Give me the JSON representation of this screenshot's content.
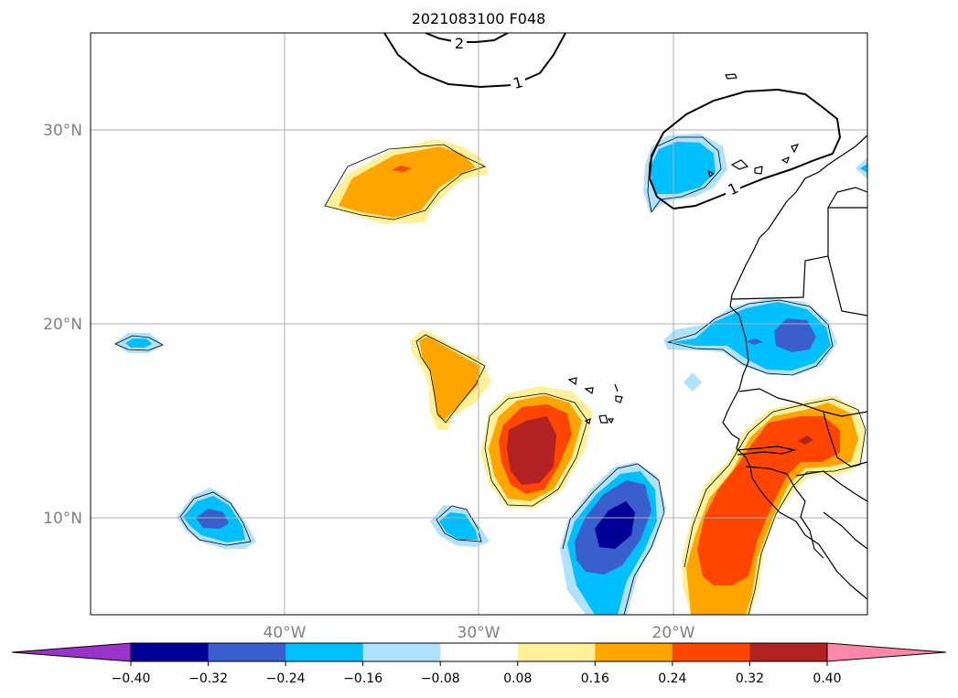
{
  "chart_data": {
    "type": "contour-map",
    "title": "2021083100 F048",
    "projection": "PlateCarree",
    "map_extent": {
      "lon": [
        -50,
        -10
      ],
      "lat": [
        5,
        35
      ]
    },
    "grid": true,
    "lon_ticks": [
      {
        "lon": -40,
        "label": "40°W"
      },
      {
        "lon": -30,
        "label": "30°W"
      },
      {
        "lon": -20,
        "label": "20°W"
      }
    ],
    "lat_ticks": [
      {
        "lat": 10,
        "label": "10°N"
      },
      {
        "lat": 20,
        "label": "20°N"
      },
      {
        "lat": 30,
        "label": "30°N"
      }
    ],
    "colorbar": {
      "orientation": "horizontal",
      "extend": "both",
      "levels": [
        -0.4,
        -0.32,
        -0.24,
        -0.16,
        -0.08,
        0.08,
        0.16,
        0.24,
        0.32,
        0.4
      ],
      "tick_labels": [
        "−0.40",
        "−0.32",
        "−0.24",
        "−0.16",
        "−0.08",
        "0.08",
        "0.16",
        "0.24",
        "0.32",
        "0.40"
      ],
      "colors": [
        "#9933cc",
        "#000099",
        "#3a5fcd",
        "#00bfff",
        "#b0e2ff",
        "#ffffff",
        "#fff09a",
        "#ffa500",
        "#ff4500",
        "#b22222",
        "#ff88aa"
      ]
    },
    "shaded_features": [
      {
        "name": "positive-subtropical-band",
        "lon": -33,
        "lat": 27,
        "value": 0.2
      },
      {
        "name": "positive-central-atlantic",
        "lon": -30.5,
        "lat": 17,
        "value": 0.2
      },
      {
        "name": "positive-cape-verde-west",
        "lon": -27,
        "lat": 13.5,
        "value": 0.36
      },
      {
        "name": "positive-west-africa-coast",
        "lon": -15,
        "lat": 10,
        "value": 0.3
      },
      {
        "name": "positive-senegal-mali",
        "lon": -12,
        "lat": 14,
        "value": 0.3
      },
      {
        "name": "negative-canary-region",
        "lon": -19.5,
        "lat": 27.5,
        "value": -0.2
      },
      {
        "name": "negative-mauritania-coast",
        "lon": -14.5,
        "lat": 19,
        "value": -0.28
      },
      {
        "name": "negative-south-of-cape-verde",
        "lon": -22.5,
        "lat": 9,
        "value": -0.4
      },
      {
        "name": "negative-west-atlantic",
        "lon": -44,
        "lat": 9.7,
        "value": -0.28
      },
      {
        "name": "negative-small-central",
        "lon": -31,
        "lat": 9.5,
        "value": -0.2
      },
      {
        "name": "negative-far-west",
        "lon": -46,
        "lat": 19,
        "value": -0.2
      }
    ],
    "contour_lines": [
      {
        "level": "2",
        "label": "2"
      },
      {
        "level": "1",
        "label": "1"
      },
      {
        "level": "1",
        "label": "1"
      }
    ]
  }
}
